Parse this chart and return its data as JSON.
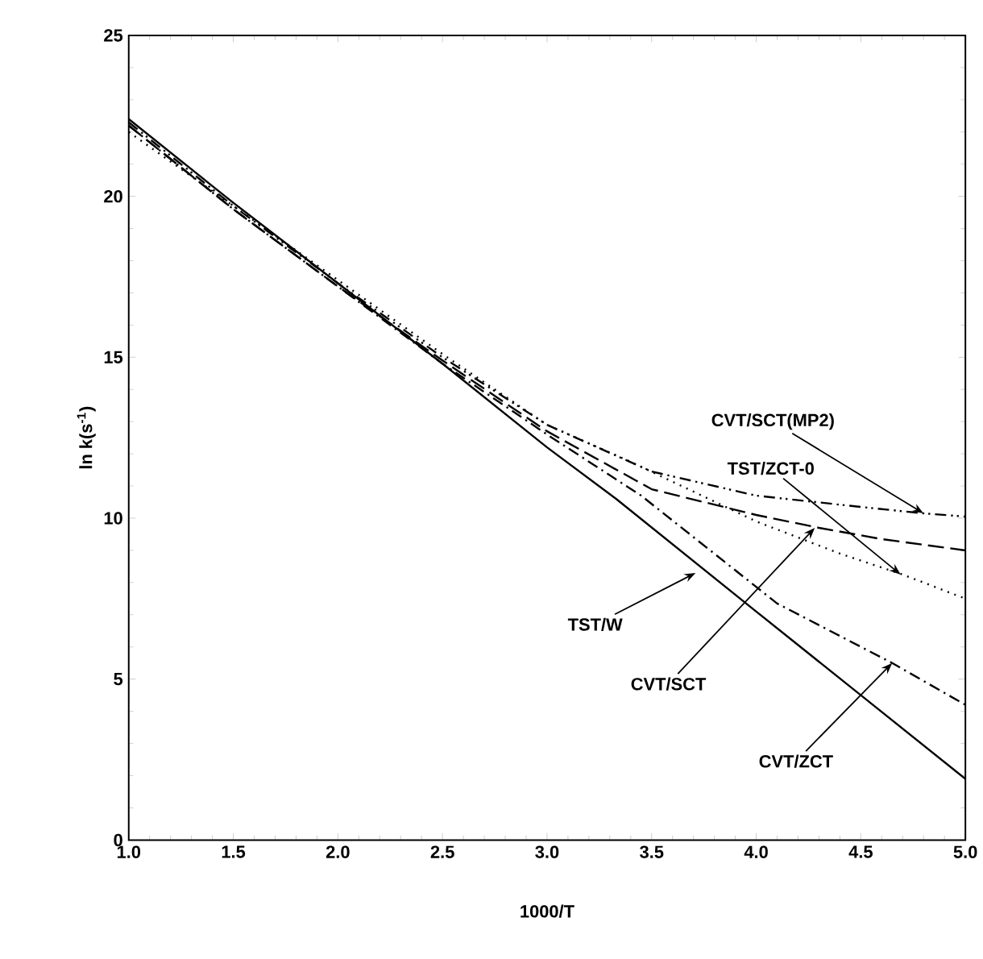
{
  "chart_data": {
    "type": "line",
    "xlabel": "1000/T",
    "ylabel": "ln k(s$^{-1}$)",
    "xlim": [
      1.0,
      5.0
    ],
    "ylim": [
      0,
      25
    ],
    "xticks": [
      {
        "value": 1.0,
        "label": "1.0"
      },
      {
        "value": 1.5,
        "label": "1.5"
      },
      {
        "value": 2.0,
        "label": "2.0"
      },
      {
        "value": 2.5,
        "label": "2.5"
      },
      {
        "value": 3.0,
        "label": "3.0"
      },
      {
        "value": 3.5,
        "label": "3.5"
      },
      {
        "value": 4.0,
        "label": "4.0"
      },
      {
        "value": 4.5,
        "label": "4.5"
      },
      {
        "value": 5.0,
        "label": "5.0"
      }
    ],
    "yticks": [
      0,
      5,
      10,
      15,
      20,
      25
    ],
    "series": [
      {
        "color": "#000000",
        "line_style": "solid",
        "x": [
          1.0,
          1.5,
          2.0,
          2.5,
          3.0,
          3.33,
          4.0,
          4.5,
          5.0
        ],
        "values": [
          22.4,
          19.8,
          17.3,
          14.8,
          12.2,
          10.6,
          7.1,
          4.5,
          1.9
        ]
      },
      {
        "color": "#000000",
        "line_style": "dashdotdot",
        "x": [
          1.0,
          1.5,
          2.0,
          2.5,
          3.0,
          3.5,
          4.0,
          4.5,
          4.8,
          5.0
        ],
        "values": [
          22.3,
          19.7,
          17.3,
          15.0,
          12.9,
          11.45,
          10.7,
          10.35,
          10.15,
          10.05
        ]
      },
      {
        "color": "#000000",
        "line_style": "dashed",
        "x": [
          1.0,
          1.5,
          2.0,
          2.5,
          3.0,
          3.5,
          4.0,
          4.3,
          4.6,
          5.0
        ],
        "values": [
          22.2,
          19.6,
          17.2,
          14.9,
          12.7,
          10.9,
          10.1,
          9.7,
          9.35,
          9.0
        ]
      },
      {
        "color": "#000000",
        "line_style": "dotted",
        "x": [
          1.0,
          1.5,
          2.0,
          2.5,
          3.0,
          3.4,
          4.0,
          4.4,
          4.7,
          5.0
        ],
        "values": [
          22.0,
          19.7,
          17.4,
          15.1,
          12.9,
          11.75,
          9.9,
          8.9,
          8.25,
          7.5
        ]
      },
      {
        "color": "#000000",
        "line_style": "dashdot",
        "x": [
          1.0,
          1.5,
          2.0,
          2.5,
          3.0,
          3.45,
          4.1,
          4.65,
          5.0
        ],
        "values": [
          22.2,
          19.6,
          17.2,
          14.8,
          12.6,
          10.7,
          7.35,
          5.5,
          4.2
        ]
      }
    ],
    "annotations": [
      {
        "text": "CVT/SCT(MP2)",
        "x": 4.8,
        "y": 10.15
      },
      {
        "text": "TST/ZCT-0",
        "x": 4.69,
        "y": 8.25
      },
      {
        "text": "TST/W",
        "x": 3.71,
        "y": 8.3
      },
      {
        "text": "CVT/SCT",
        "x": 4.28,
        "y": 9.7
      },
      {
        "text": "CVT/ZCT",
        "x": 4.65,
        "y": 5.5
      }
    ]
  }
}
